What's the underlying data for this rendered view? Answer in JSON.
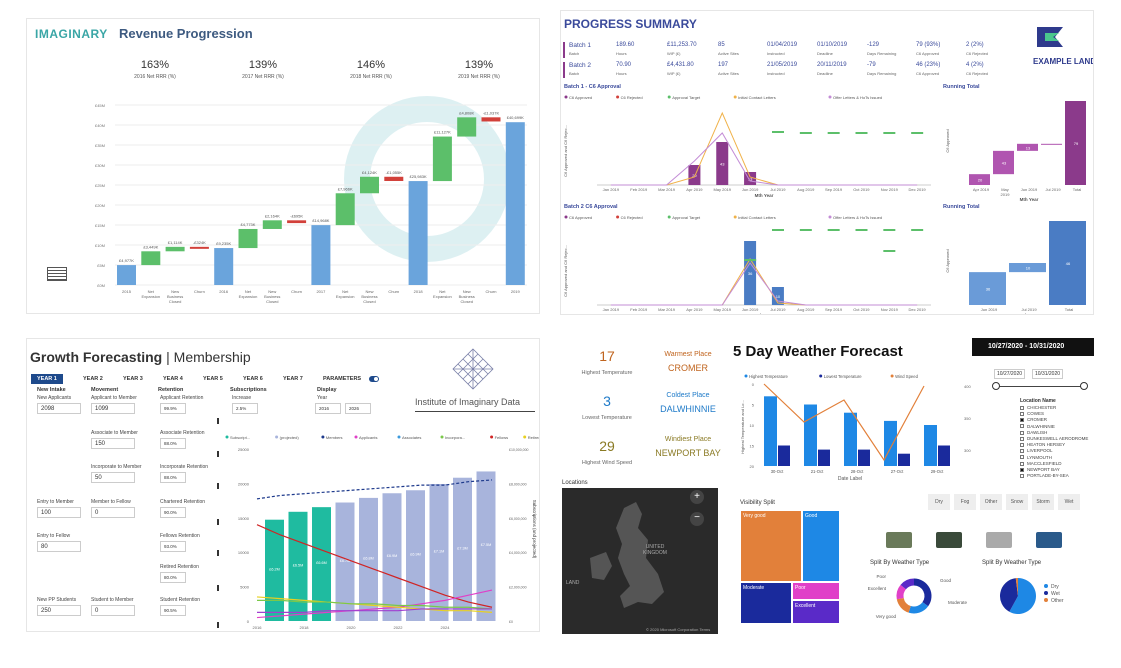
{
  "revenue": {
    "logo": "IMAGINARY",
    "title": "Revenue Progression",
    "kpis": [
      {
        "value": "163%",
        "label": "2016 Net RRR (%)"
      },
      {
        "value": "139%",
        "label": "2017 Net RRR (%)"
      },
      {
        "value": "146%",
        "label": "2018 Net RRR (%)"
      },
      {
        "value": "139%",
        "label": "2019 Net RRR (%)"
      }
    ],
    "yticks": [
      "£45M",
      "£40M",
      "£35M",
      "£30M",
      "£25M",
      "£20M",
      "£15M",
      "£10M",
      "£5M",
      "£0M"
    ],
    "xlabels": [
      "2015",
      "Net\nExpansion",
      "New\nBusiness\nClosed",
      "Churn",
      "2016",
      "Net\nExpansion",
      "New\nBusiness\nClosed",
      "Churn",
      "2017",
      "Net\nExpansion",
      "New\nBusiness\nClosed",
      "Churn",
      "2018",
      "Net\nExpansion",
      "New\nBusiness\nClosed",
      "Churn",
      "2019"
    ],
    "bar_labels": [
      "£4,977K",
      "£3,449K",
      "£1,114K",
      "-£324K",
      "£9,235K",
      "£4,773K",
      "£2,164K",
      "-£695K",
      "£14,968K",
      "£7,966K",
      "£4,124K",
      "-£1,055K",
      "£25,983K",
      "£11,127K",
      "£4,808K",
      "-£1,037K",
      "£40,699K"
    ]
  },
  "progress": {
    "title": "PROGRESS SUMMARY",
    "logo": "EXAMPLE LAND",
    "batches": [
      {
        "name": "Batch 1",
        "sub": "Batch",
        "hours": "189.60",
        "hours_l": "Hours",
        "wip": "£11,253.70",
        "wip_l": "WIP (£)",
        "sites": "85",
        "sites_l": "Active Sites",
        "instr": "01/04/2019",
        "instr_l": "Instructed",
        "dead": "01/10/2019",
        "dead_l": "Deadline",
        "days": "-129",
        "days_l": "Days Remaining",
        "appr": "79 (93%)",
        "appr_l": "C6 Approved",
        "rej": "2 (2%)",
        "rej_l": "C6 Rejected"
      },
      {
        "name": "Batch 2",
        "sub": "Batch",
        "hours": "70.90",
        "hours_l": "Hours",
        "wip": "£4,431.80",
        "wip_l": "WIP (£)",
        "sites": "197",
        "sites_l": "Active Sites",
        "instr": "21/05/2019",
        "instr_l": "Instructed",
        "dead": "20/11/2019",
        "dead_l": "Deadline",
        "days": "-79",
        "days_l": "Days Remaining",
        "appr": "46 (23%)",
        "appr_l": "C6 Approved",
        "rej": "4 (2%)",
        "rej_l": "C6 Rejected"
      }
    ],
    "b1_title": "Batch 1 - C6 Approval",
    "b2_title": "Batch 2 C6 Approval",
    "legend": [
      "C6 Approved",
      "C6 Rejected",
      "Approval Target",
      "Initial Contact Letters",
      "Offer Letters & HoTs Issued"
    ],
    "running": "Running Total",
    "months": [
      "Jan 2019",
      "Feb 2019",
      "Mar 2019",
      "Apr 2019",
      "May 2019",
      "Jun 2019",
      "Jul 2019",
      "Aug 2019",
      "Sep 2019",
      "Oct 2019",
      "Nov 2019",
      "Dec 2019"
    ],
    "xaxis": "Mth Year",
    "yaxis": "C6 Approved and C6 Rejec...",
    "yaxis2": "C6 Approved",
    "rt1_months": [
      "Apr 2019",
      "May\n2019",
      "Jun 2019",
      "Jul 2019",
      "Total"
    ],
    "rt1_vals": [
      "20",
      "43",
      "13",
      "",
      "79"
    ],
    "rt2_months": [
      "Jun 2019",
      "Jul 2019",
      "Total"
    ],
    "rt2_vals": [
      "36",
      "10",
      "46"
    ],
    "b1_bar_labels": [
      "20",
      "43",
      "13"
    ],
    "b2_bar_labels": [
      "36",
      "10"
    ]
  },
  "growth": {
    "title_a": "Growth Forecasting",
    "title_b": "Membership",
    "years": [
      "YEAR 1",
      "YEAR 2",
      "YEAR 3",
      "YEAR 4",
      "YEAR 5",
      "YEAR 6",
      "YEAR 7",
      "PARAMETERS"
    ],
    "institute": "Institute of Imaginary Data",
    "col_heads": [
      "New Intake",
      "Movement",
      "Retention",
      "Subscriptions",
      "Display"
    ],
    "new_applicants_l": "New Applicants",
    "new_applicants": "2098",
    "entry_member_l": "Entry to Member",
    "entry_member": "100",
    "entry_fellow_l": "Entry to Fellow",
    "entry_fellow": "80",
    "new_pp_l": "New PP Students",
    "new_pp": "250",
    "app_member_l": "Applicant to Member",
    "app_member": "1099",
    "assoc_member_l": "Associate to Member",
    "assoc_member": "150",
    "incorp_member_l": "Incorporate to Member",
    "incorp_member": "50",
    "member_fellow_l": "Member to Fellow",
    "member_fellow": "0",
    "student_member_l": "Student to Member",
    "student_member": "0",
    "ret": [
      {
        "l": "Applicant Retention",
        "v": "99.9%"
      },
      {
        "l": "Associate Retention",
        "v": "88.0%"
      },
      {
        "l": "Incorporate Retention",
        "v": "88.0%"
      },
      {
        "l": "Chartered Retention",
        "v": "90.0%"
      },
      {
        "l": "Fellows Retention",
        "v": "93.0%"
      },
      {
        "l": "Retired Retention",
        "v": "80.0%"
      },
      {
        "l": "Student Retention",
        "v": "90.5%"
      }
    ],
    "inc_l": "Increase",
    "inc": "2.5%",
    "year_l": "Year",
    "year_a": "2016",
    "year_b": "2026",
    "legend": [
      "Subscript...",
      "(projected)",
      "Members",
      "Applicants",
      "Associates",
      "Incorpora...",
      "Fellows",
      "Retired",
      "Students"
    ],
    "yleft": [
      "25000",
      "20000",
      "15000",
      "10000",
      "5000",
      "0"
    ],
    "yright": [
      "£10,000,000",
      "£8,000,000",
      "£6,000,000",
      "£4,000,000",
      "£2,000,000",
      "£0"
    ],
    "xlabels": [
      "2016",
      "2018",
      "2020",
      "2022",
      "2024"
    ],
    "bar_labels": [
      "£6.2M",
      "£6.5M",
      "£6.6M",
      "£6.7M",
      "£6.8M",
      "£6.9M",
      "£6.9M",
      "£7.1M",
      "£7.3M",
      "£7.5M",
      "£7.6M",
      "£7.9M"
    ],
    "yright_title": "Subscriptions (and projected)"
  },
  "weather": {
    "title": "5 Day Weather Forecast",
    "date_range": "10/27/2020 - 10/31/2020",
    "date_a": "10/27/2020",
    "date_b": "10/31/2020",
    "highest_temp": "17",
    "highest_temp_l": "Highest Temperature",
    "lowest_temp": "3",
    "lowest_temp_l": "Lowest Temperature",
    "highest_wind": "29",
    "highest_wind_l": "Highest Wind Speed",
    "warmest_l": "Warmest Place",
    "warmest": "CROMER",
    "coldest_l": "Coldest Place",
    "coldest": "DALWHINNIE",
    "windiest_l": "Windiest Place",
    "windiest": "NEWPORT BAY",
    "legend": [
      "Highest Temperature",
      "Lowest Temperature",
      "Wind Speed"
    ],
    "dates": [
      "30-Oct",
      "21-Oct",
      "28-Oct",
      "27-Oct",
      "29-Oct"
    ],
    "xaxis": "Date Label",
    "yaxis": "Highest Temperature and Lo...",
    "yleft": [
      "20",
      "15",
      "10",
      "5",
      "0"
    ],
    "yright": [
      "400",
      "350",
      "300"
    ],
    "location_name": "Location Name",
    "locations": [
      "CHICHESTER",
      "COWES",
      "CROMER",
      "DALWHINNIE",
      "DAWLISH",
      "DUNKESWELL AERODROME",
      "HEATON HERSEY",
      "LIVERPOOL",
      "LYNMOUTH",
      "MACCLESFIELD",
      "NEWPORT BAY",
      "PORTLADE-BY-SEA"
    ],
    "conds": [
      "Dry",
      "Fog",
      "Other",
      "Snow",
      "Storm",
      "Wet"
    ],
    "locations_title": "Locations",
    "map_labels": [
      "UNITED\nKINGDOM",
      "LAND"
    ],
    "map_credit": "© 2020 Microsoft Corporation  Terms",
    "visibility": "Visibility Split",
    "vis": [
      "Very good",
      "Good",
      "Moderate",
      "Poor",
      "Excellent"
    ],
    "split1": "Split By Weather Type",
    "split2": "Split By Weather Type",
    "donut_labels": [
      "Poor",
      "Good",
      "Excellent",
      "Moderate",
      "Very good"
    ],
    "pie_legend": [
      "Dry",
      "Wet",
      "Other"
    ]
  }
}
